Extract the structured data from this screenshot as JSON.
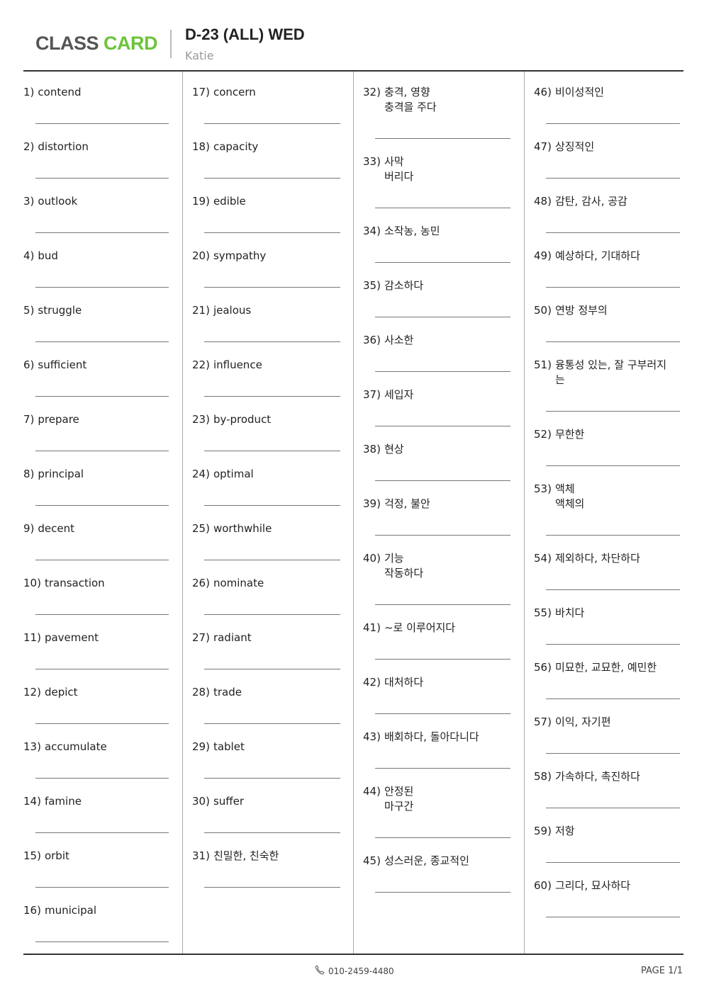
{
  "header": {
    "logo_part1": "CLASS",
    "logo_part2": "CARD",
    "title": "D-23 (ALL) WED",
    "author": "Katie",
    "brand_color": "#6cc43a"
  },
  "columns": [
    [
      {
        "num": "1)",
        "text": "contend"
      },
      {
        "num": "2)",
        "text": "distortion"
      },
      {
        "num": "3)",
        "text": "outlook"
      },
      {
        "num": "4)",
        "text": "bud"
      },
      {
        "num": "5)",
        "text": "struggle"
      },
      {
        "num": "6)",
        "text": "sufficient"
      },
      {
        "num": "7)",
        "text": "prepare"
      },
      {
        "num": "8)",
        "text": "principal"
      },
      {
        "num": "9)",
        "text": "decent"
      },
      {
        "num": "10)",
        "text": "transaction"
      },
      {
        "num": "11)",
        "text": "pavement"
      },
      {
        "num": "12)",
        "text": "depict"
      },
      {
        "num": "13)",
        "text": "accumulate"
      },
      {
        "num": "14)",
        "text": "famine"
      },
      {
        "num": "15)",
        "text": "orbit"
      },
      {
        "num": "16)",
        "text": "municipal"
      }
    ],
    [
      {
        "num": "17)",
        "text": "concern"
      },
      {
        "num": "18)",
        "text": "capacity"
      },
      {
        "num": "19)",
        "text": "edible"
      },
      {
        "num": "20)",
        "text": "sympathy"
      },
      {
        "num": "21)",
        "text": "jealous"
      },
      {
        "num": "22)",
        "text": "influence"
      },
      {
        "num": "23)",
        "text": "by-product"
      },
      {
        "num": "24)",
        "text": "optimal"
      },
      {
        "num": "25)",
        "text": "worthwhile"
      },
      {
        "num": "26)",
        "text": "nominate"
      },
      {
        "num": "27)",
        "text": "radiant"
      },
      {
        "num": "28)",
        "text": "trade"
      },
      {
        "num": "29)",
        "text": "tablet"
      },
      {
        "num": "30)",
        "text": "suffer"
      },
      {
        "num": "31)",
        "text": "친밀한, 친숙한"
      }
    ],
    [
      {
        "num": "32)",
        "text": "충격, 영향\n충격을 주다"
      },
      {
        "num": "33)",
        "text": "사막\n버리다"
      },
      {
        "num": "34)",
        "text": "소작농, 농민"
      },
      {
        "num": "35)",
        "text": "감소하다"
      },
      {
        "num": "36)",
        "text": "사소한"
      },
      {
        "num": "37)",
        "text": "세입자"
      },
      {
        "num": "38)",
        "text": "현상"
      },
      {
        "num": "39)",
        "text": "걱정, 불안"
      },
      {
        "num": "40)",
        "text": "기능\n작동하다"
      },
      {
        "num": "41)",
        "text": "~로 이루어지다"
      },
      {
        "num": "42)",
        "text": "대처하다"
      },
      {
        "num": "43)",
        "text": "배회하다, 돌아다니다"
      },
      {
        "num": "44)",
        "text": "안정된\n마구간"
      },
      {
        "num": "45)",
        "text": "성스러운, 종교적인"
      }
    ],
    [
      {
        "num": "46)",
        "text": "비이성적인"
      },
      {
        "num": "47)",
        "text": "상징적인"
      },
      {
        "num": "48)",
        "text": "감탄, 감사, 공감"
      },
      {
        "num": "49)",
        "text": "예상하다, 기대하다"
      },
      {
        "num": "50)",
        "text": "연방 정부의"
      },
      {
        "num": "51)",
        "text": "융통성 있는, 잘 구부러지\n는"
      },
      {
        "num": "52)",
        "text": "무한한"
      },
      {
        "num": "53)",
        "text": "액체\n액체의"
      },
      {
        "num": "54)",
        "text": "제외하다, 차단하다"
      },
      {
        "num": "55)",
        "text": "바치다"
      },
      {
        "num": "56)",
        "text": "미묘한, 교묘한, 예민한"
      },
      {
        "num": "57)",
        "text": "이익, 자기편"
      },
      {
        "num": "58)",
        "text": "가속하다, 촉진하다"
      },
      {
        "num": "59)",
        "text": "저항"
      },
      {
        "num": "60)",
        "text": "그리다, 묘사하다"
      }
    ]
  ],
  "footer": {
    "phone_icon": "phone-icon",
    "phone": "010-2459-4480",
    "page": "PAGE 1/1"
  }
}
